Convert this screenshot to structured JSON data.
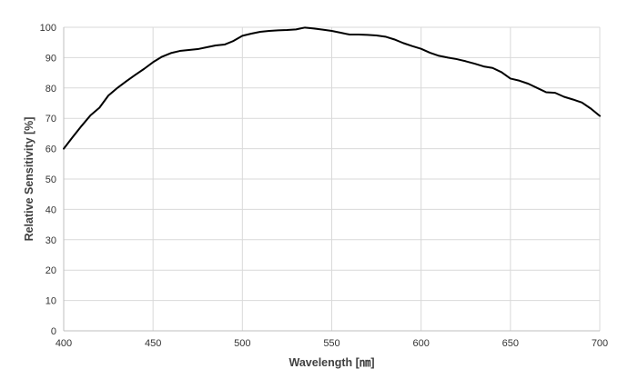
{
  "chart_data": {
    "type": "line",
    "title": "",
    "xlabel": "Wavelength [㎚]",
    "ylabel": "Relative Sensitivity [%]",
    "xlim": [
      400,
      700
    ],
    "ylim": [
      0,
      100
    ],
    "x_ticks": [
      400,
      450,
      500,
      550,
      600,
      650,
      700
    ],
    "y_ticks": [
      0,
      10,
      20,
      30,
      40,
      50,
      60,
      70,
      80,
      90,
      100
    ],
    "grid": true,
    "legend": "none",
    "line_color": "#000000",
    "grid_color": "#d9d9d9",
    "series": [
      {
        "x": [
          400,
          405,
          410,
          415,
          420,
          425,
          430,
          435,
          440,
          445,
          450,
          455,
          460,
          465,
          470,
          475,
          480,
          485,
          490,
          495,
          500,
          505,
          510,
          515,
          520,
          525,
          530,
          535,
          540,
          545,
          550,
          555,
          560,
          565,
          570,
          575,
          580,
          585,
          590,
          595,
          600,
          605,
          610,
          615,
          620,
          625,
          630,
          635,
          640,
          645,
          650,
          655,
          660,
          665,
          670,
          675,
          680,
          685,
          690,
          695,
          700
        ],
        "y": [
          60.0,
          63.8,
          67.5,
          71.0,
          73.5,
          77.5,
          80.0,
          82.2,
          84.3,
          86.3,
          88.5,
          90.3,
          91.5,
          92.2,
          92.5,
          92.8,
          93.4,
          94.0,
          94.3,
          95.5,
          97.2,
          97.9,
          98.5,
          98.8,
          99.0,
          99.1,
          99.3,
          99.9,
          99.6,
          99.2,
          98.8,
          98.2,
          97.6,
          97.6,
          97.5,
          97.3,
          96.9,
          96.0,
          94.8,
          93.8,
          92.9,
          91.6,
          90.6,
          90.0,
          89.5,
          88.8,
          88.0,
          87.1,
          86.6,
          85.2,
          83.1,
          82.4,
          81.4,
          80.0,
          78.6,
          78.4,
          77.1,
          76.2,
          75.2,
          73.2,
          70.8
        ]
      }
    ]
  }
}
